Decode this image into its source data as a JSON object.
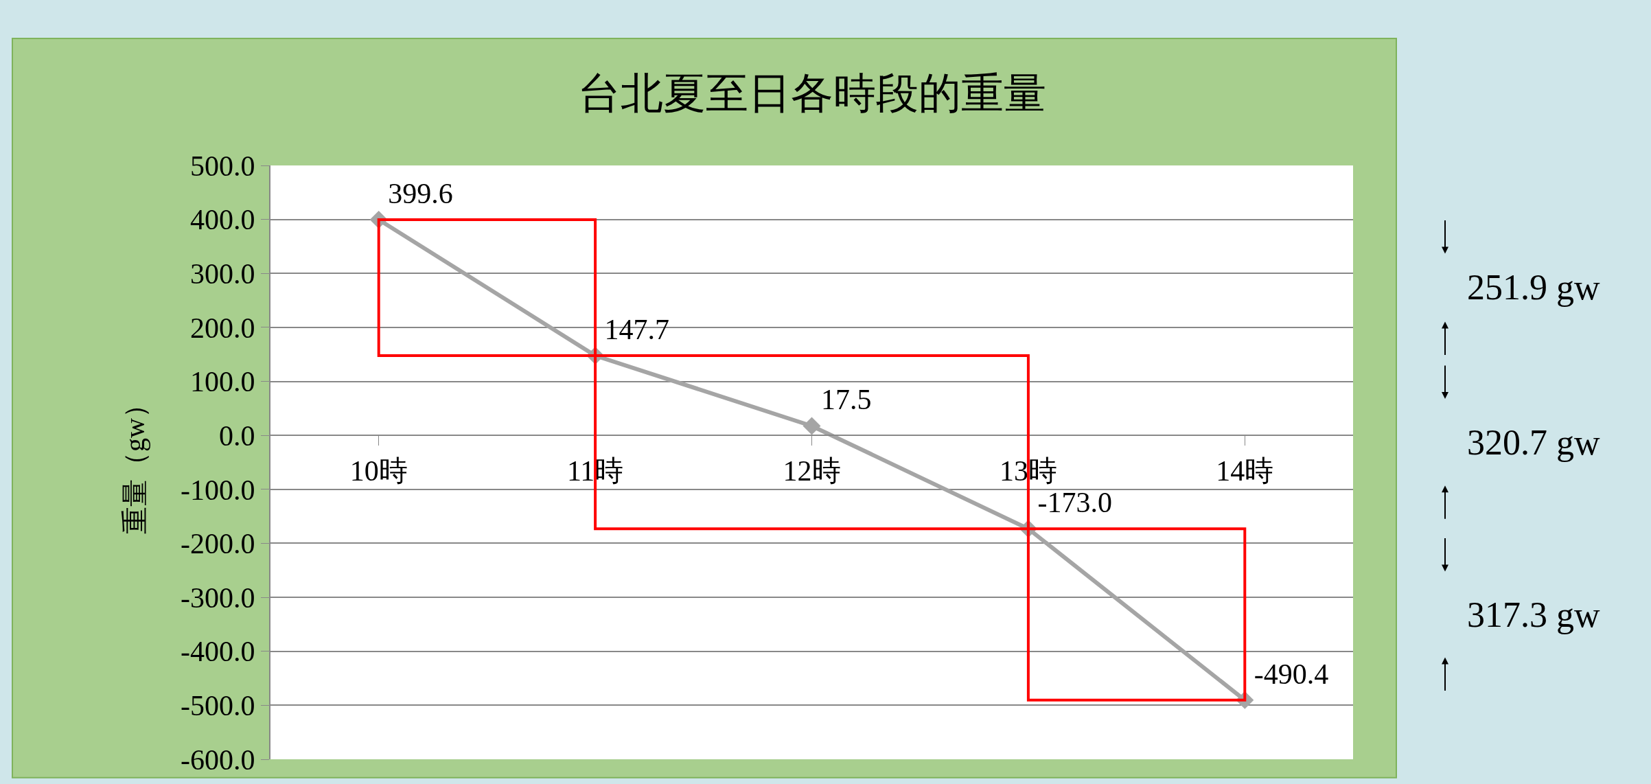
{
  "chart_data": {
    "type": "line",
    "title": "台北夏至日各時段的重量",
    "ylabel": "重量（gw）",
    "categories": [
      "10時",
      "11時",
      "12時",
      "13時",
      "14時"
    ],
    "series": [
      {
        "color": "#a5a5a5",
        "values": [
          399.6,
          147.7,
          17.5,
          -173.0,
          -490.4
        ],
        "value_labels": [
          "399.6",
          "147.7",
          "17.5",
          "-173.0",
          "-490.4"
        ],
        "marker": "diamond"
      }
    ],
    "ylim": [
      -600,
      500
    ],
    "yticks": [
      {
        "value": -600,
        "label": "-600.0"
      },
      {
        "value": -500,
        "label": "-500.0"
      },
      {
        "value": -400,
        "label": "-400.0"
      },
      {
        "value": -300,
        "label": "-300.0"
      },
      {
        "value": -200,
        "label": "-200.0"
      },
      {
        "value": -100,
        "label": "-100.0"
      },
      {
        "value": 0,
        "label": "0.0"
      },
      {
        "value": 100,
        "label": "100.0"
      },
      {
        "value": 200,
        "label": "200.0"
      },
      {
        "value": 300,
        "label": "300.0"
      },
      {
        "value": 400,
        "label": "400.0"
      },
      {
        "value": 500,
        "label": "500.0"
      }
    ],
    "grid": "y",
    "annotations": [
      "251.9 gw",
      "320.7 gw",
      "317.3 gw"
    ]
  }
}
